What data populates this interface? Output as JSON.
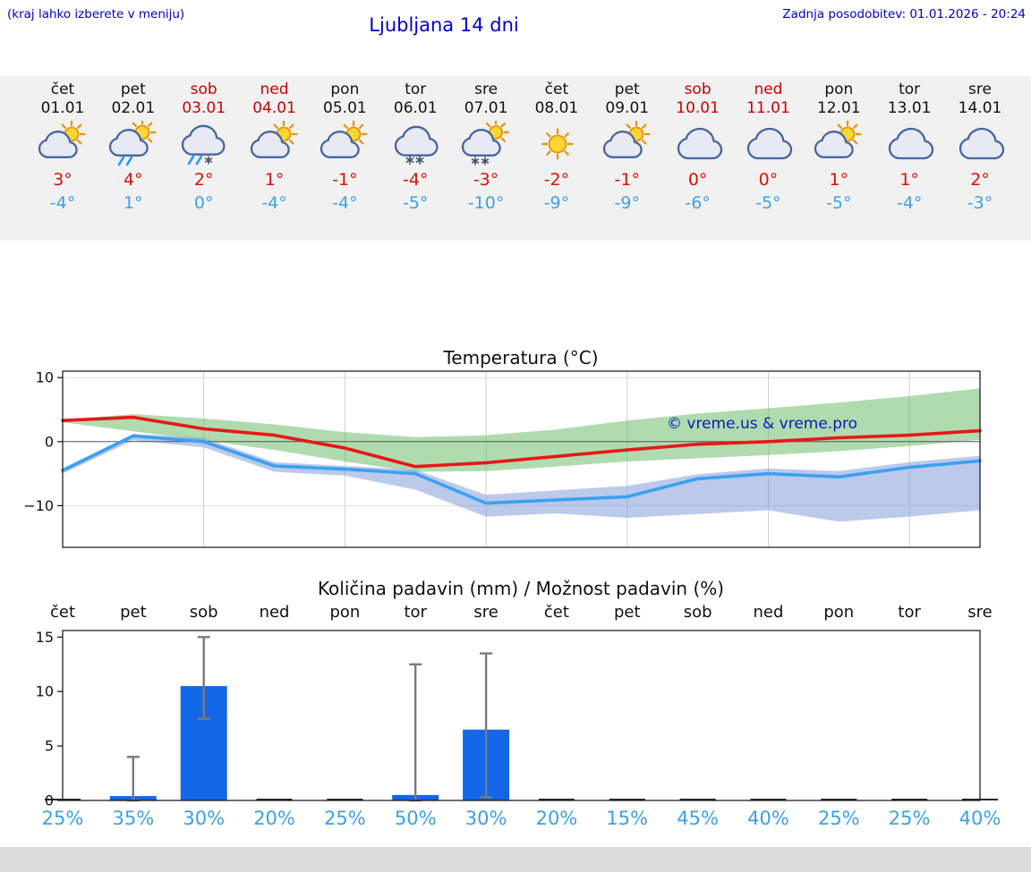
{
  "header": {
    "hint": "(kraj lahko izberete v meniju)",
    "title": "Ljubljana 14 dni",
    "updated": "Zadnja posodobitev: 01.01.2026 - 20:24"
  },
  "watermark": "© vreme.us & vreme.pro",
  "colors": {
    "header_blue": "#0000cc",
    "weekend_red": "#cc0000",
    "temp_high_red": "#dd1100",
    "temp_low_blue": "#3da0e8",
    "probability_blue": "#3da0e8",
    "strip_bg": "#f1f1f1"
  },
  "forecast": {
    "days": [
      {
        "day": "čet",
        "date": "01.01",
        "weekend": false,
        "icon": "sun-cloud",
        "high": "3°",
        "low": "-4°"
      },
      {
        "day": "pet",
        "date": "02.01",
        "weekend": false,
        "icon": "sun-cloud-rain",
        "high": "4°",
        "low": "1°"
      },
      {
        "day": "sob",
        "date": "03.01",
        "weekend": true,
        "icon": "cloud-sleet",
        "high": "2°",
        "low": "0°"
      },
      {
        "day": "ned",
        "date": "04.01",
        "weekend": true,
        "icon": "sun-cloud",
        "high": "1°",
        "low": "-4°"
      },
      {
        "day": "pon",
        "date": "05.01",
        "weekend": false,
        "icon": "sun-cloud",
        "high": "-1°",
        "low": "-4°"
      },
      {
        "day": "tor",
        "date": "06.01",
        "weekend": false,
        "icon": "cloud-snow",
        "high": "-4°",
        "low": "-5°"
      },
      {
        "day": "sre",
        "date": "07.01",
        "weekend": false,
        "icon": "sun-cloud-snow",
        "high": "-3°",
        "low": "-10°"
      },
      {
        "day": "čet",
        "date": "08.01",
        "weekend": false,
        "icon": "sun",
        "high": "-2°",
        "low": "-9°"
      },
      {
        "day": "pet",
        "date": "09.01",
        "weekend": false,
        "icon": "sun-cloud",
        "high": "-1°",
        "low": "-9°"
      },
      {
        "day": "sob",
        "date": "10.01",
        "weekend": true,
        "icon": "cloud",
        "high": "0°",
        "low": "-6°"
      },
      {
        "day": "ned",
        "date": "11.01",
        "weekend": true,
        "icon": "cloud",
        "high": "0°",
        "low": "-5°"
      },
      {
        "day": "pon",
        "date": "12.01",
        "weekend": false,
        "icon": "sun-cloud",
        "high": "1°",
        "low": "-5°"
      },
      {
        "day": "tor",
        "date": "13.01",
        "weekend": false,
        "icon": "cloud",
        "high": "1°",
        "low": "-4°"
      },
      {
        "day": "sre",
        "date": "14.01",
        "weekend": false,
        "icon": "cloud",
        "high": "2°",
        "low": "-3°"
      }
    ]
  },
  "chart_data": [
    {
      "type": "line",
      "title": "Temperatura (°C)",
      "categories": [
        "01.01",
        "02.01",
        "03.01",
        "04.01",
        "05.01",
        "06.01",
        "07.01",
        "08.01",
        "09.01",
        "10.01",
        "11.01",
        "12.01",
        "13.01",
        "14.01"
      ],
      "ylim": [
        -16.5,
        11
      ],
      "yticks": [
        10,
        0,
        -10
      ],
      "grid_x_indices": [
        2,
        4,
        6,
        8,
        10,
        12
      ],
      "series": [
        {
          "name": "temperatura max",
          "color": "#e81717",
          "values": [
            3.3,
            3.8,
            2,
            1,
            -1,
            -3.9,
            -3.3,
            -2.3,
            -1.3,
            -0.4,
            0,
            0.6,
            1,
            1.7
          ]
        },
        {
          "name": "temperatura min",
          "color": "#3da0f0",
          "values": [
            -4.5,
            0.9,
            0,
            -3.8,
            -4.3,
            -5,
            -9.6,
            -9.1,
            -8.6,
            -5.8,
            -5,
            -5.5,
            -4,
            -3
          ]
        }
      ],
      "bands": [
        {
          "name": "razpon max",
          "color": "rgba(110,190,110,0.55)",
          "upper": [
            3.4,
            4.3,
            3.6,
            2.7,
            1.5,
            0.7,
            1.0,
            1.9,
            3.3,
            4.4,
            5.2,
            6.1,
            7.1,
            8.3
          ],
          "lower": [
            3.0,
            1.6,
            0.2,
            -1.3,
            -3.1,
            -4.7,
            -4.6,
            -3.9,
            -3.1,
            -2.6,
            -2.1,
            -1.5,
            -0.7,
            0.3
          ]
        },
        {
          "name": "razpon min",
          "color": "rgba(120,150,215,0.5)",
          "upper": [
            -4.2,
            1.2,
            0.6,
            -3.2,
            -3.8,
            -4.4,
            -8.3,
            -7.6,
            -6.9,
            -5.1,
            -4.2,
            -4.6,
            -3.2,
            -2.2
          ],
          "lower": [
            -5.0,
            0.2,
            -0.9,
            -4.7,
            -5.3,
            -7.5,
            -11.7,
            -11.2,
            -11.9,
            -11.3,
            -10.7,
            -12.5,
            -11.7,
            -10.7
          ]
        }
      ]
    },
    {
      "type": "bar",
      "title": "Količina padavin (mm) / Možnost padavin (%)",
      "categories": [
        "čet",
        "pet",
        "sob",
        "ned",
        "pon",
        "tor",
        "sre",
        "čet",
        "pet",
        "sob",
        "ned",
        "pon",
        "tor",
        "sre"
      ],
      "values": [
        0,
        0.4,
        10.5,
        0,
        0,
        0.5,
        6.5,
        0,
        0,
        0,
        0,
        0,
        0,
        0
      ],
      "whiskers": [
        null,
        [
          0,
          4
        ],
        [
          7.5,
          15
        ],
        null,
        null,
        [
          0,
          12.5
        ],
        [
          0.3,
          13.5
        ],
        null,
        null,
        null,
        null,
        null,
        null,
        null
      ],
      "ylim": [
        0,
        15.6
      ],
      "yticks": [
        0,
        5,
        10,
        15
      ],
      "probabilities": [
        "25%",
        "35%",
        "30%",
        "20%",
        "25%",
        "50%",
        "30%",
        "20%",
        "15%",
        "45%",
        "40%",
        "25%",
        "25%",
        "40%"
      ],
      "bar_color": "#1466e8",
      "whisker_color": "#7a7a7a"
    }
  ]
}
